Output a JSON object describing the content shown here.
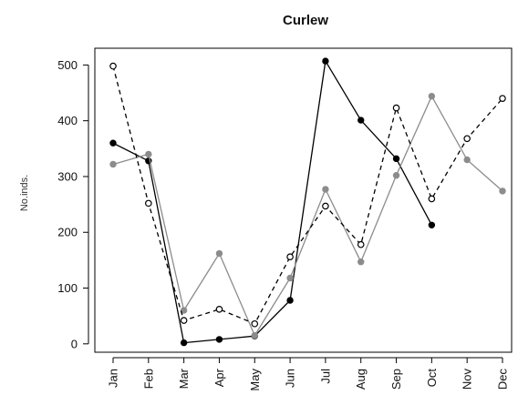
{
  "chart_data": {
    "type": "line",
    "title": "Curlew",
    "xlabel": "",
    "ylabel": "No.inds.",
    "categories": [
      "Jan",
      "Feb",
      "Mar",
      "Apr",
      "May",
      "Jun",
      "Jul",
      "Aug",
      "Sep",
      "Oct",
      "Nov",
      "Dec"
    ],
    "y_ticks": [
      0,
      100,
      200,
      300,
      400,
      500
    ],
    "ylim": [
      -15,
      530
    ],
    "grid": false,
    "legend": "none",
    "series": [
      {
        "values": [
          360,
          328,
          2,
          8,
          14,
          78,
          507,
          401,
          332,
          213,
          null,
          null
        ],
        "line_color": "#000000",
        "line_style": "solid",
        "marker": "filled-circle",
        "marker_color": "#000000"
      },
      {
        "values": [
          322,
          340,
          60,
          162,
          15,
          118,
          277,
          147,
          302,
          444,
          330,
          274
        ],
        "line_color": "#8c8c8c",
        "line_style": "solid",
        "marker": "filled-circle",
        "marker_color": "#8c8c8c"
      },
      {
        "values": [
          498,
          252,
          42,
          62,
          36,
          156,
          247,
          178,
          423,
          260,
          368,
          440
        ],
        "line_color": "#000000",
        "line_style": "dashed",
        "marker": "open-circle",
        "marker_color": "#000000"
      }
    ]
  }
}
